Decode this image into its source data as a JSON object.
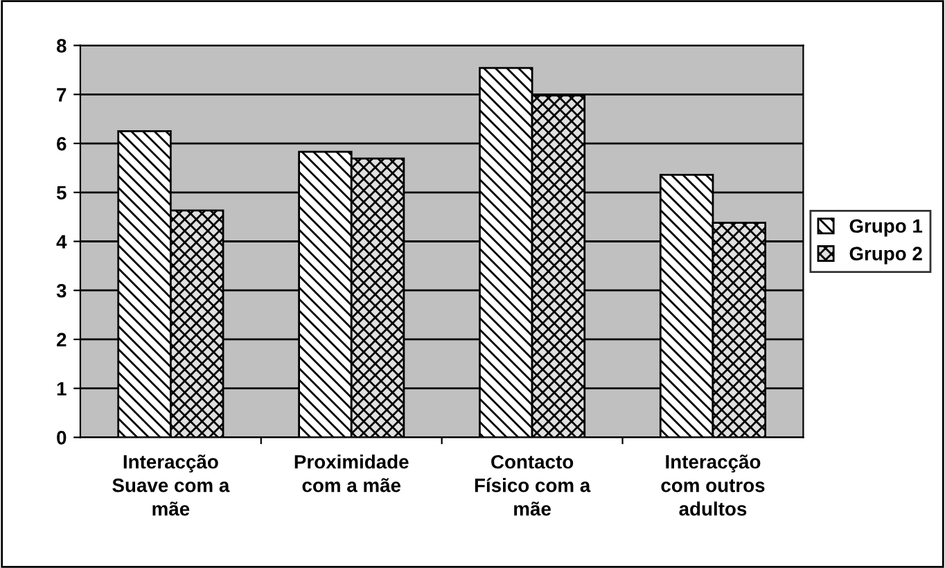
{
  "chart_data": {
    "type": "bar",
    "categories": [
      "Interacção\nSuave com a\nmãe",
      "Proximidade\ncom a mãe",
      "Contacto\nFísico com a\nmãe",
      "Interacção\ncom outros\nadultos"
    ],
    "series": [
      {
        "name": "Grupo 1",
        "color": "#000000",
        "values": [
          6.25,
          5.83,
          7.54,
          5.36
        ]
      },
      {
        "name": "Grupo 2",
        "color": "#000000",
        "values": [
          4.63,
          5.69,
          6.98,
          4.38
        ]
      }
    ],
    "ylim": [
      0,
      8
    ],
    "yticks": [
      0,
      1,
      2,
      3,
      4,
      5,
      6,
      7,
      8
    ],
    "grid": "y",
    "legend": "right"
  }
}
